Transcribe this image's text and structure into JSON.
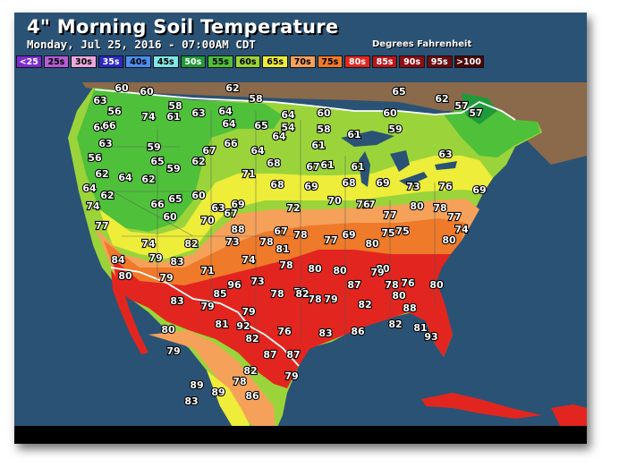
{
  "title": "4\" Morning Soil Temperature",
  "subtitle": "Monday, Jul 25, 2016 - 07:00AM CDT",
  "units": "Degrees Fahrenheit",
  "legend": [
    {
      "label": "<25",
      "bg": "#7d2bd1",
      "fg": "#ffffff"
    },
    {
      "label": "25s",
      "bg": "#b65dd6",
      "fg": "#000000"
    },
    {
      "label": "30s",
      "bg": "#eaa7dd",
      "fg": "#000000"
    },
    {
      "label": "35s",
      "bg": "#2a2ac6",
      "fg": "#ffffff"
    },
    {
      "label": "40s",
      "bg": "#4b8ef0",
      "fg": "#000000"
    },
    {
      "label": "45s",
      "bg": "#7fe6e6",
      "fg": "#000000"
    },
    {
      "label": "50s",
      "bg": "#1f9a3a",
      "fg": "#ffffff"
    },
    {
      "label": "55s",
      "bg": "#4fc03a",
      "fg": "#000000"
    },
    {
      "label": "60s",
      "bg": "#9bd43a",
      "fg": "#000000"
    },
    {
      "label": "65s",
      "bg": "#eded3a",
      "fg": "#000000"
    },
    {
      "label": "70s",
      "bg": "#f5a15a",
      "fg": "#000000"
    },
    {
      "label": "75s",
      "bg": "#ee7a2a",
      "fg": "#000000"
    },
    {
      "label": "80s",
      "bg": "#e2261f",
      "fg": "#ffffff"
    },
    {
      "label": "85s",
      "bg": "#b8151b",
      "fg": "#ffffff"
    },
    {
      "label": "90s",
      "bg": "#8a0e14",
      "fg": "#ffffff"
    },
    {
      "label": "95s",
      "bg": "#6a0c10",
      "fg": "#ffffff"
    },
    {
      "label": ">100",
      "bg": "#4a0609",
      "fg": "#ffffff"
    }
  ],
  "colors": {
    "water": "#2a5275",
    "land_other": "#8a6a4a",
    "cool": "#4fc03a",
    "mild": "#9bd43a",
    "warm65": "#eded3a",
    "warm70": "#f5a15a",
    "warm75": "#ee7a2a",
    "hot80": "#e2261f"
  },
  "readings": [
    {
      "v": "60"
    },
    {
      "v": "60"
    },
    {
      "v": "62"
    },
    {
      "v": "58"
    },
    {
      "v": "65"
    },
    {
      "v": "62"
    },
    {
      "v": "57"
    },
    {
      "v": "63"
    },
    {
      "v": "56"
    },
    {
      "v": "74"
    },
    {
      "v": "58"
    },
    {
      "v": "61"
    },
    {
      "v": "63"
    },
    {
      "v": "64"
    },
    {
      "v": "64"
    },
    {
      "v": "60"
    },
    {
      "v": "60"
    },
    {
      "v": "57"
    },
    {
      "v": "64"
    },
    {
      "v": "66"
    },
    {
      "v": "65"
    },
    {
      "v": "54"
    },
    {
      "v": "58"
    },
    {
      "v": "59"
    },
    {
      "v": "64"
    },
    {
      "v": "61"
    },
    {
      "v": "63"
    },
    {
      "v": "59"
    },
    {
      "v": "67"
    },
    {
      "v": "66"
    },
    {
      "v": "64"
    },
    {
      "v": "64"
    },
    {
      "v": "61"
    },
    {
      "v": "61"
    },
    {
      "v": "56"
    },
    {
      "v": "65"
    },
    {
      "v": "59"
    },
    {
      "v": "62"
    },
    {
      "v": "68"
    },
    {
      "v": "67"
    },
    {
      "v": "61"
    },
    {
      "v": "63"
    },
    {
      "v": "62"
    },
    {
      "v": "64"
    },
    {
      "v": "62"
    },
    {
      "v": "71"
    },
    {
      "v": "68"
    },
    {
      "v": "69"
    },
    {
      "v": "68"
    },
    {
      "v": "69"
    },
    {
      "v": "73"
    },
    {
      "v": "76"
    },
    {
      "v": "69"
    },
    {
      "v": "64"
    },
    {
      "v": "62"
    },
    {
      "v": "65"
    },
    {
      "v": "60"
    },
    {
      "v": "63"
    },
    {
      "v": "69"
    },
    {
      "v": "72"
    },
    {
      "v": "70"
    },
    {
      "v": "77"
    },
    {
      "v": "77"
    },
    {
      "v": "80"
    },
    {
      "v": "78"
    },
    {
      "v": "77"
    },
    {
      "v": "74"
    },
    {
      "v": "66"
    },
    {
      "v": "60"
    },
    {
      "v": "70"
    },
    {
      "v": "67"
    },
    {
      "v": "69"
    },
    {
      "v": "75"
    },
    {
      "v": "74"
    },
    {
      "v": "77"
    },
    {
      "v": "88"
    },
    {
      "v": "67"
    },
    {
      "v": "78"
    },
    {
      "v": "78"
    },
    {
      "v": "76"
    },
    {
      "v": "77"
    },
    {
      "v": "80"
    },
    {
      "v": "75"
    },
    {
      "v": "74"
    },
    {
      "v": "82"
    },
    {
      "v": "73"
    },
    {
      "v": "81"
    },
    {
      "v": "80"
    },
    {
      "v": "84"
    },
    {
      "v": "79"
    },
    {
      "v": "83"
    },
    {
      "v": "71"
    },
    {
      "v": "74"
    },
    {
      "v": "78"
    },
    {
      "v": "80"
    },
    {
      "v": "80"
    },
    {
      "v": "80"
    },
    {
      "v": "78"
    },
    {
      "v": "76"
    },
    {
      "v": "80"
    },
    {
      "v": "79"
    },
    {
      "v": "96"
    },
    {
      "v": "73"
    },
    {
      "v": "78"
    },
    {
      "v": "79"
    },
    {
      "v": "80"
    },
    {
      "v": "83"
    },
    {
      "v": "85"
    },
    {
      "v": "79"
    },
    {
      "v": "78"
    },
    {
      "v": "88"
    },
    {
      "v": "79"
    },
    {
      "v": "81"
    },
    {
      "v": "82"
    },
    {
      "v": "79"
    },
    {
      "v": "87"
    },
    {
      "v": "79"
    },
    {
      "v": "80"
    },
    {
      "v": "80"
    },
    {
      "v": "92"
    },
    {
      "v": "76"
    },
    {
      "v": "83"
    },
    {
      "v": "82"
    },
    {
      "v": "81"
    },
    {
      "v": "82"
    },
    {
      "v": "87"
    },
    {
      "v": "93"
    },
    {
      "v": "82"
    },
    {
      "v": "79"
    },
    {
      "v": "89"
    },
    {
      "v": "86"
    },
    {
      "v": "82"
    },
    {
      "v": "78"
    },
    {
      "v": "79"
    },
    {
      "v": "87"
    },
    {
      "v": "86"
    },
    {
      "v": "83"
    },
    {
      "v": "89"
    },
    {
      "v": "69"
    }
  ]
}
